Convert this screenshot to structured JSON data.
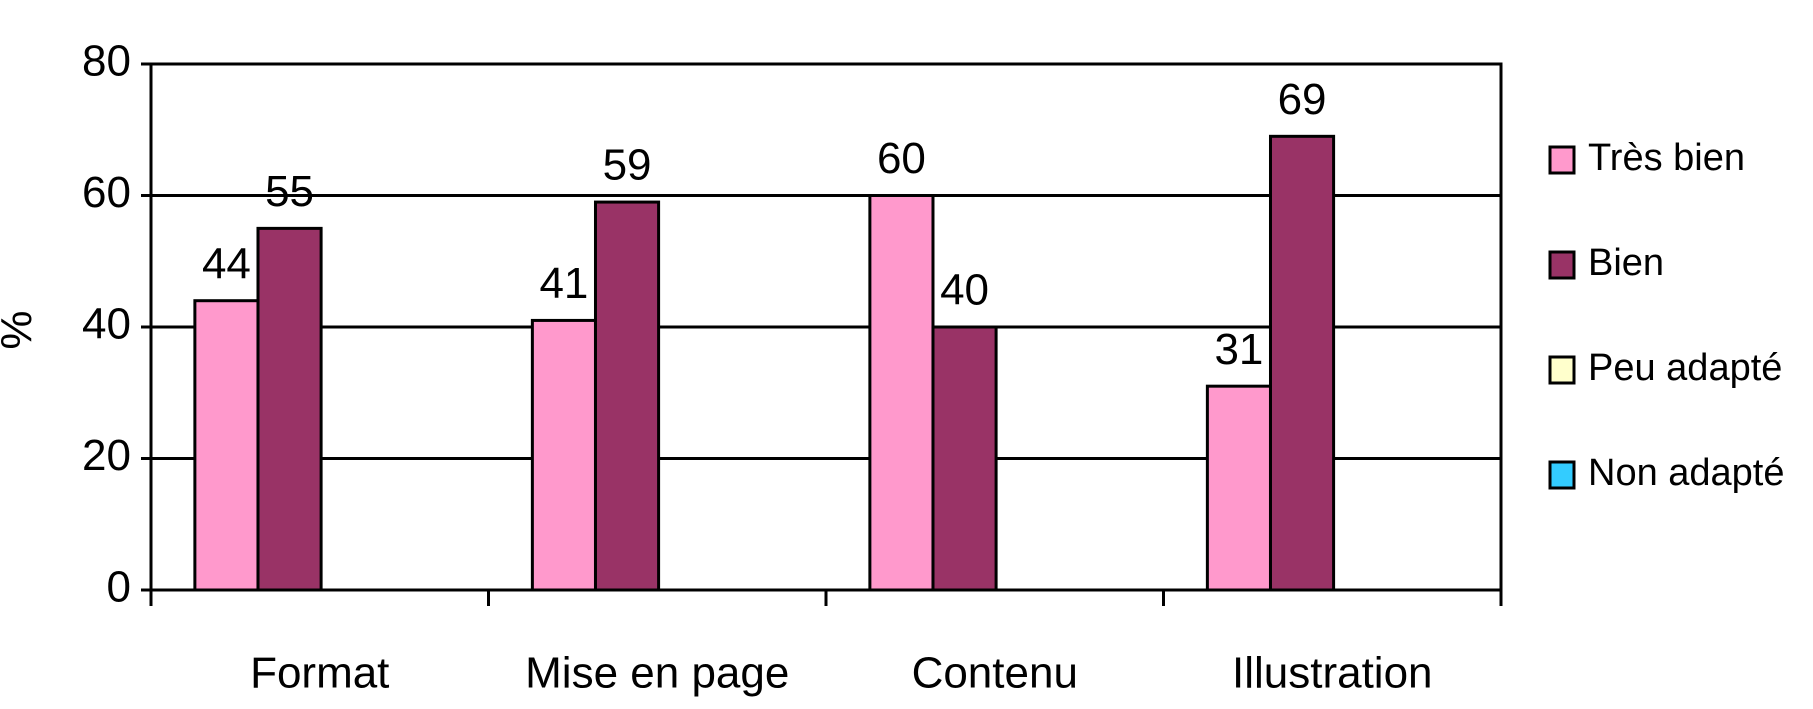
{
  "chart_data": {
    "type": "bar",
    "y_label": "%",
    "categories": [
      "Format",
      "Mise en page",
      "Contenu",
      "Illustration"
    ],
    "series": [
      {
        "name": "Très bien",
        "color": "#ff99cc",
        "values": [
          44,
          41,
          60,
          31
        ]
      },
      {
        "name": "Bien",
        "color": "#993366",
        "values": [
          55,
          59,
          40,
          69
        ]
      },
      {
        "name": "Peu adapté",
        "color": "#ffffcc",
        "values": [
          null,
          null,
          null,
          null
        ]
      },
      {
        "name": "Non adapté",
        "color": "#33ccff",
        "values": [
          null,
          null,
          null,
          null
        ]
      }
    ],
    "ylim": [
      0,
      80
    ],
    "yticks": [
      0,
      20,
      40,
      60,
      80
    ],
    "grid": true,
    "legend": "right"
  }
}
